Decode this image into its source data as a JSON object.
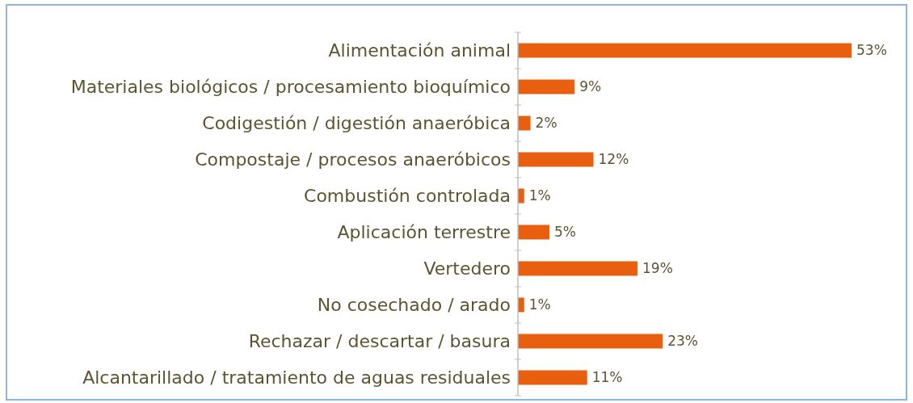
{
  "chart_data": {
    "type": "bar",
    "orientation": "horizontal",
    "categories": [
      "Alimentación animal",
      "Materiales biológicos / procesamiento bioquímico",
      "Codigestión / digestión anaeróbica",
      "Compostaje / procesos anaeróbicos",
      "Combustión controlada",
      "Aplicación terrestre",
      "Vertedero",
      "No cosechado / arado",
      "Rechazar / descartar / basura",
      "Alcantarillado / tratamiento de aguas residuales"
    ],
    "values": [
      53,
      9,
      2,
      12,
      1,
      5,
      19,
      1,
      23,
      11
    ],
    "value_labels": [
      "53%",
      "9%",
      "2%",
      "12%",
      "1%",
      "5%",
      "19%",
      "1%",
      "23%",
      "11%"
    ],
    "color": "#e8600f",
    "tick_labels": "y"
  }
}
